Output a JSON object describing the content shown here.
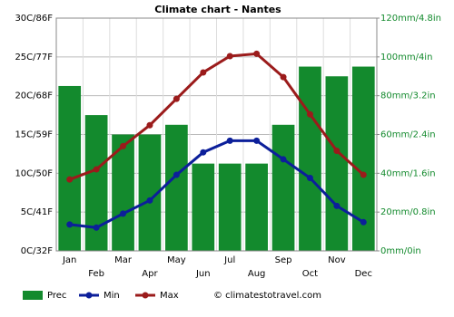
{
  "chart_data": {
    "type": "climate",
    "title": "Climate chart - Nantes",
    "categories": [
      "Jan",
      "Feb",
      "Mar",
      "Apr",
      "May",
      "Jun",
      "Jul",
      "Aug",
      "Sep",
      "Oct",
      "Nov",
      "Dec"
    ],
    "series": [
      {
        "name": "Prec",
        "type": "bar",
        "axis": "y2",
        "color": "#138a2d",
        "values": [
          85,
          70,
          60,
          60,
          65,
          45,
          45,
          45,
          65,
          95,
          90,
          95
        ]
      },
      {
        "name": "Min",
        "type": "line",
        "axis": "y",
        "color": "#0c1f9a",
        "values": [
          3.4,
          3.0,
          4.8,
          6.5,
          9.8,
          12.7,
          14.2,
          14.2,
          11.8,
          9.4,
          5.8,
          3.7
        ]
      },
      {
        "name": "Max",
        "type": "line",
        "axis": "y",
        "color": "#9b1b1b",
        "values": [
          9.2,
          10.5,
          13.5,
          16.2,
          19.6,
          23.0,
          25.1,
          25.4,
          22.4,
          17.6,
          12.9,
          9.8
        ]
      }
    ],
    "ylim": [
      0,
      30
    ],
    "yticks": [
      {
        "value": 0,
        "label": "0C/32F"
      },
      {
        "value": 5,
        "label": "5C/41F"
      },
      {
        "value": 10,
        "label": "10C/50F"
      },
      {
        "value": 15,
        "label": "15C/59F"
      },
      {
        "value": 20,
        "label": "20C/68F"
      },
      {
        "value": 25,
        "label": "25C/77F"
      },
      {
        "value": 30,
        "label": "30C/86F"
      }
    ],
    "y2lim": [
      0,
      120
    ],
    "y2ticks": [
      {
        "value": 0,
        "label": "0mm/0in"
      },
      {
        "value": 20,
        "label": "20mm/0.8in"
      },
      {
        "value": 40,
        "label": "40mm/1.6in"
      },
      {
        "value": 60,
        "label": "60mm/2.4in"
      },
      {
        "value": 80,
        "label": "80mm/3.2in"
      },
      {
        "value": 100,
        "label": "100mm/4in"
      },
      {
        "value": 120,
        "label": "120mm/4.8in"
      }
    ],
    "y2_color": "#138a2d",
    "grid": true,
    "legend": "bottom",
    "credit": "© climatestotravel.com"
  }
}
